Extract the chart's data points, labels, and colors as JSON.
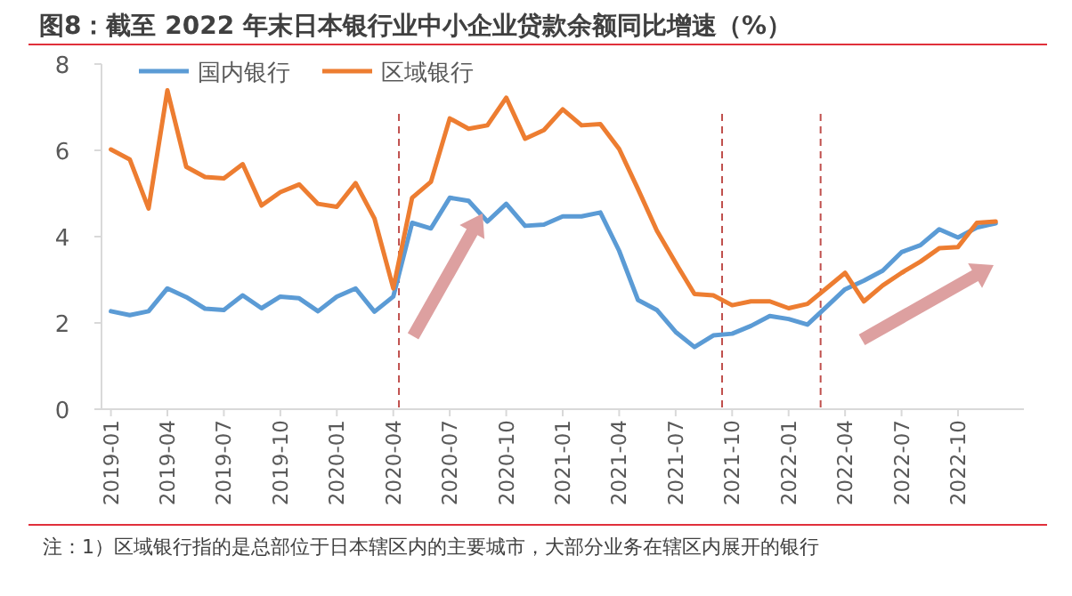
{
  "chart_data": {
    "type": "line",
    "title": "图8：截至 2022 年末日本银行业中小企业贷款余额同比增速（%）",
    "x": [
      "2019-01",
      "2019-02",
      "2019-03",
      "2019-04",
      "2019-05",
      "2019-06",
      "2019-07",
      "2019-08",
      "2019-09",
      "2019-10",
      "2019-11",
      "2019-12",
      "2020-01",
      "2020-02",
      "2020-03",
      "2020-04",
      "2020-05",
      "2020-06",
      "2020-07",
      "2020-08",
      "2020-09",
      "2020-10",
      "2020-11",
      "2020-12",
      "2021-01",
      "2021-02",
      "2021-03",
      "2021-04",
      "2021-05",
      "2021-06",
      "2021-07",
      "2021-08",
      "2021-09",
      "2021-10",
      "2021-11",
      "2021-12",
      "2022-01",
      "2022-02",
      "2022-03",
      "2022-04",
      "2022-05",
      "2022-06",
      "2022-07",
      "2022-08",
      "2022-09",
      "2022-10",
      "2022-11",
      "2022-12"
    ],
    "series": [
      {
        "name": "国内银行",
        "color": "#5b9bd5",
        "values": [
          2.27,
          2.18,
          2.27,
          2.8,
          2.6,
          2.33,
          2.3,
          2.64,
          2.34,
          2.61,
          2.57,
          2.27,
          2.61,
          2.8,
          2.26,
          2.61,
          4.32,
          4.19,
          4.9,
          4.83,
          4.35,
          4.76,
          4.25,
          4.28,
          4.47,
          4.47,
          4.56,
          3.67,
          2.53,
          2.3,
          1.79,
          1.44,
          1.71,
          1.75,
          1.93,
          2.16,
          2.09,
          1.96,
          2.37,
          2.78,
          2.98,
          3.21,
          3.64,
          3.8,
          4.17,
          3.98,
          4.21,
          4.31
        ]
      },
      {
        "name": "区域银行",
        "color": "#ed7d31",
        "values": [
          6.02,
          5.79,
          4.65,
          7.39,
          5.62,
          5.38,
          5.35,
          5.68,
          4.72,
          5.03,
          5.21,
          4.76,
          4.69,
          5.24,
          4.42,
          2.8,
          4.9,
          5.27,
          6.74,
          6.5,
          6.58,
          7.22,
          6.27,
          6.47,
          6.95,
          6.58,
          6.61,
          6.03,
          5.1,
          4.14,
          3.39,
          2.67,
          2.64,
          2.41,
          2.5,
          2.5,
          2.34,
          2.44,
          2.8,
          3.16,
          2.5,
          2.87,
          3.16,
          3.42,
          3.73,
          3.76,
          4.32,
          4.35
        ]
      }
    ],
    "xlim": [
      "2018-12-16",
      "2023-01-16"
    ],
    "xticks": [
      "2019-01",
      "2019-04",
      "2019-07",
      "2019-10",
      "2020-01",
      "2020-04",
      "2020-07",
      "2020-10",
      "2021-01",
      "2021-04",
      "2021-07",
      "2021-10",
      "2022-01",
      "2022-04",
      "2022-07",
      "2022-10"
    ],
    "ylim": [
      0,
      8
    ],
    "yticks": [
      0,
      2,
      4,
      6,
      8
    ],
    "ref_lines": [
      {
        "axis": "x",
        "value": "2020-04-10",
        "color": "#c0504d",
        "line_style": "dashed"
      },
      {
        "axis": "x",
        "value": "2021-09-15",
        "color": "#c0504d",
        "line_style": "dashed"
      },
      {
        "axis": "x",
        "value": "2022-02-22",
        "color": "#c0504d",
        "line_style": "dashed"
      }
    ],
    "annotations": [
      "注：1）区域银行指的是总部位于日本辖区内的主要城市，大部分业务在辖区内展开的银行"
    ],
    "legend": "top left",
    "grid": false,
    "marker": "none",
    "line_style": "solid"
  }
}
